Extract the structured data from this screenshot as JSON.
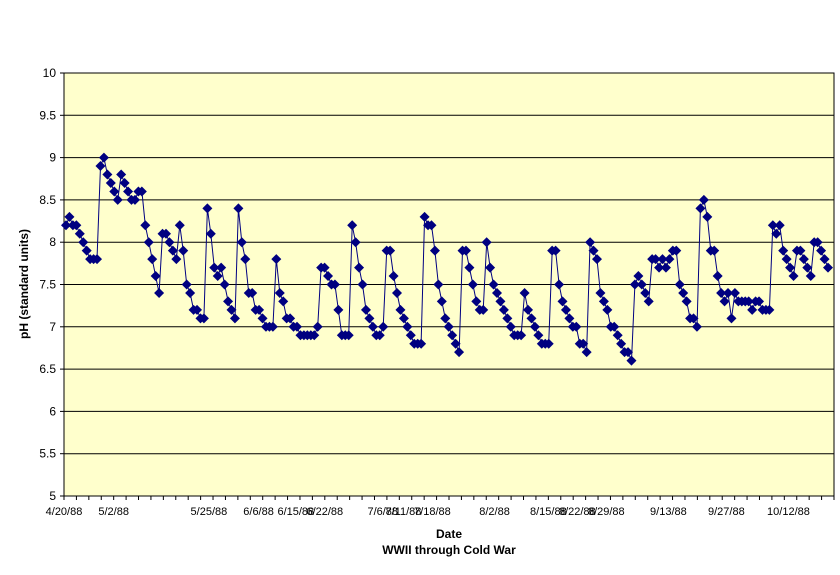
{
  "chart_data": {
    "type": "line",
    "title": "",
    "xlabel": "Date",
    "subtitle": "WWII through Cold War",
    "ylabel": "pH (standard units)",
    "ylim": [
      5,
      10
    ],
    "y_ticks": [
      "5",
      "5.5",
      "6",
      "6.5",
      "7",
      "7.5",
      "8",
      "8.5",
      "9",
      "9.5",
      "10"
    ],
    "x_range": [
      "1988-04-20",
      "1988-10-23"
    ],
    "x_ticks": [
      {
        "date": "1988-04-20",
        "label": "4/20/88"
      },
      {
        "date": "1988-05-02",
        "label": "5/2/88"
      },
      {
        "date": "1988-05-25",
        "label": "5/25/88"
      },
      {
        "date": "1988-06-06",
        "label": "6/6/88"
      },
      {
        "date": "1988-06-15",
        "label": "6/15/88"
      },
      {
        "date": "1988-06-22",
        "label": "6/22/88"
      },
      {
        "date": "1988-07-06",
        "label": "7/6/88"
      },
      {
        "date": "1988-07-11",
        "label": "7/11/88"
      },
      {
        "date": "1988-07-18",
        "label": "7/18/88"
      },
      {
        "date": "1988-08-02",
        "label": "8/2/88"
      },
      {
        "date": "1988-08-15",
        "label": "8/15/88"
      },
      {
        "date": "1988-08-22",
        "label": "8/22/88"
      },
      {
        "date": "1988-08-29",
        "label": "8/29/88"
      },
      {
        "date": "1988-09-13",
        "label": "9/13/88"
      },
      {
        "date": "1988-09-27",
        "label": "9/27/88"
      },
      {
        "date": "1988-10-12",
        "label": "10/12/88"
      }
    ],
    "grid": true,
    "legend": "none",
    "colors": {
      "series": "#000080",
      "plot_bg": "#FFFFCC",
      "grid": "#000000"
    },
    "series": [
      {
        "marker": "diamond",
        "values": [
          8.2,
          8.3,
          8.2,
          8.2,
          8.1,
          8.0,
          7.9,
          7.8,
          7.8,
          7.8,
          8.9,
          9.0,
          8.8,
          8.7,
          8.6,
          8.5,
          8.8,
          8.7,
          8.6,
          8.5,
          8.5,
          8.6,
          8.6,
          8.2,
          8.0,
          7.8,
          7.6,
          7.4,
          8.1,
          8.1,
          8.0,
          7.9,
          7.8,
          8.2,
          7.9,
          7.5,
          7.4,
          7.2,
          7.2,
          7.1,
          7.1,
          8.4,
          8.1,
          7.7,
          7.6,
          7.7,
          7.5,
          7.3,
          7.2,
          7.1,
          8.4,
          8.0,
          7.8,
          7.4,
          7.4,
          7.2,
          7.2,
          7.1,
          7.0,
          7.0,
          7.0,
          7.8,
          7.4,
          7.3,
          7.1,
          7.1,
          7.0,
          7.0,
          6.9,
          6.9,
          6.9,
          6.9,
          6.9,
          7.0,
          7.7,
          7.7,
          7.6,
          7.5,
          7.5,
          7.2,
          6.9,
          6.9,
          6.9,
          8.2,
          8.0,
          7.7,
          7.5,
          7.2,
          7.1,
          7.0,
          6.9,
          6.9,
          7.0,
          7.9,
          7.9,
          7.6,
          7.4,
          7.2,
          7.1,
          7.0,
          6.9,
          6.8,
          6.8,
          6.8,
          8.3,
          8.2,
          8.2,
          7.9,
          7.5,
          7.3,
          7.1,
          7.0,
          6.9,
          6.8,
          6.7,
          7.9,
          7.9,
          7.7,
          7.5,
          7.3,
          7.2,
          7.2,
          8.0,
          7.7,
          7.5,
          7.4,
          7.3,
          7.2,
          7.1,
          7.0,
          6.9,
          6.9,
          6.9,
          7.4,
          7.2,
          7.1,
          7.0,
          6.9,
          6.8,
          6.8,
          6.8,
          7.9,
          7.9,
          7.5,
          7.3,
          7.2,
          7.1,
          7.0,
          7.0,
          6.8,
          6.8,
          6.7,
          8.0,
          7.9,
          7.8,
          7.4,
          7.3,
          7.2,
          7.0,
          7.0,
          6.9,
          6.8,
          6.7,
          6.7,
          6.6,
          7.5,
          7.6,
          7.5,
          7.4,
          7.3,
          7.8,
          7.8,
          7.7,
          7.8,
          7.7,
          7.8,
          7.9,
          7.9,
          7.5,
          7.4,
          7.3,
          7.1,
          7.1,
          7.0,
          8.4,
          8.5,
          8.3,
          7.9,
          7.9,
          7.6,
          7.4,
          7.3,
          7.4,
          7.1,
          7.4,
          7.3,
          7.3,
          7.3,
          7.3,
          7.2,
          7.3,
          7.3,
          7.2,
          7.2,
          7.2,
          8.2,
          8.1,
          8.2,
          7.9,
          7.8,
          7.7,
          7.6,
          7.9,
          7.9,
          7.8,
          7.7,
          7.6,
          8.0,
          8.0,
          7.9,
          7.8,
          7.7
        ]
      }
    ]
  }
}
